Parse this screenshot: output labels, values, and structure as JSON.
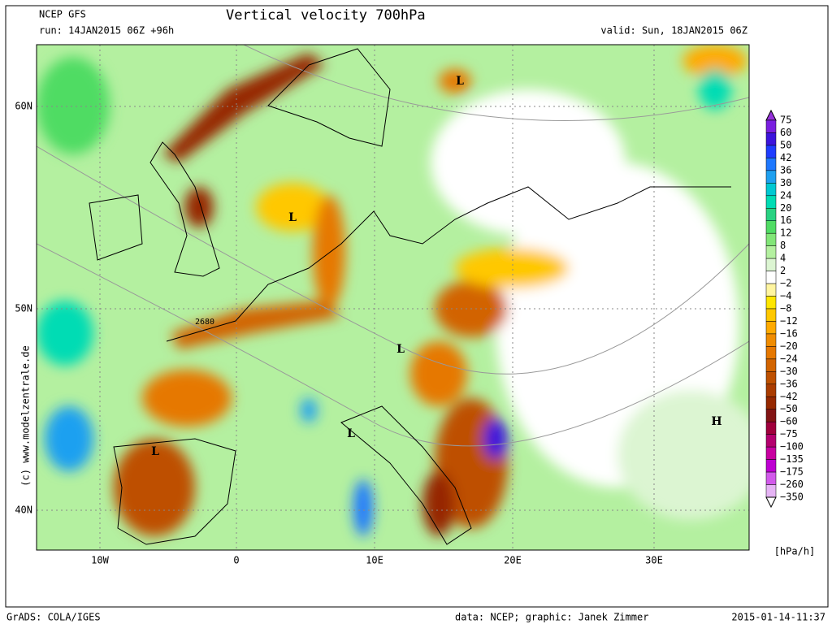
{
  "header": {
    "model": "NCEP GFS",
    "run": "run: 14JAN2015 06Z +96h",
    "title": "Vertical velocity 700hPa",
    "valid": "valid: Sun, 18JAN2015 06Z"
  },
  "map": {
    "lat_labels": [
      "60N",
      "50N",
      "40N"
    ],
    "lon_labels": [
      "10W",
      "0",
      "10E",
      "20E",
      "30E"
    ],
    "markers": [
      "L",
      "L",
      "L",
      "L",
      "L",
      "H"
    ],
    "contour_label": "2680",
    "credit": "(c) www.modelzentrale.de"
  },
  "colorbar": {
    "labels": [
      "75",
      "60",
      "50",
      "42",
      "36",
      "30",
      "24",
      "20",
      "16",
      "12",
      "8",
      "4",
      "2",
      "−2",
      "−4",
      "−8",
      "−12",
      "−16",
      "−20",
      "−24",
      "−30",
      "−36",
      "−42",
      "−50",
      "−60",
      "−75",
      "−100",
      "−135",
      "−175",
      "−260",
      "−350"
    ],
    "colors": [
      "#7a1fe0",
      "#3c14dc",
      "#1e3cff",
      "#1e78ff",
      "#1ea0f0",
      "#00c8d2",
      "#00dcb4",
      "#28d282",
      "#50dc64",
      "#82e678",
      "#b4f0a0",
      "#dcf5d2",
      "#ffffff",
      "#fff5a0",
      "#ffe600",
      "#ffc800",
      "#ffaa00",
      "#f08c00",
      "#e67800",
      "#d26400",
      "#be5000",
      "#aa3c00",
      "#962800",
      "#821414",
      "#a0003c",
      "#b4006e",
      "#c800a0",
      "#be00d2",
      "#d25aeb",
      "#e6b4f5"
    ],
    "above_color": "#9632dc",
    "below_color": "#ffffff",
    "units": "[hPa/h]"
  },
  "footer": {
    "left": "GrADS: COLA/IGES",
    "center": "data: NCEP; graphic: Janek Zimmer",
    "right": "2015-01-14-11:37"
  }
}
